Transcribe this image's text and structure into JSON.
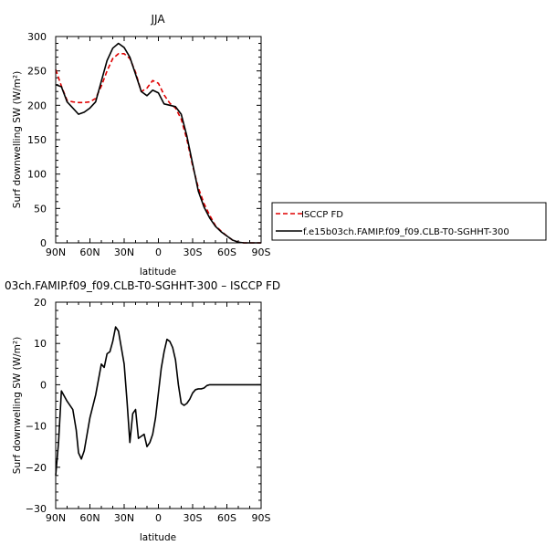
{
  "chart_data": [
    {
      "type": "line",
      "title": "JJA",
      "xlabel": "latitude",
      "ylabel": "Surf downwelling SW (W/m²)",
      "xlim": [
        -90,
        90
      ],
      "ylim": [
        0,
        300
      ],
      "x_tick_values": [
        -90,
        -60,
        -30,
        0,
        30,
        60,
        90
      ],
      "x_tick_labels": [
        "90N",
        "60N",
        "30N",
        "0",
        "30S",
        "60S",
        "90S"
      ],
      "y_tick_values": [
        0,
        50,
        100,
        150,
        200,
        250,
        300
      ],
      "y_tick_labels": [
        "0",
        "50",
        "100",
        "150",
        "200",
        "250",
        "300"
      ],
      "legend_position": "right",
      "series": [
        {
          "name": "ISCCP FD",
          "color": "#e00000",
          "dash": "dashed",
          "x": [
            -90,
            -85,
            -80,
            -75,
            -70,
            -65,
            -60,
            -55,
            -50,
            -45,
            -40,
            -35,
            -30,
            -25,
            -20,
            -15,
            -10,
            -5,
            0,
            5,
            10,
            15,
            20,
            25,
            30,
            35,
            40,
            45,
            50,
            55,
            60,
            65,
            70,
            75,
            80,
            85,
            90
          ],
          "y": [
            252,
            228,
            207,
            205,
            204,
            204,
            205,
            210,
            228,
            250,
            268,
            275,
            275,
            268,
            248,
            220,
            225,
            236,
            232,
            215,
            203,
            196,
            180,
            150,
            112,
            80,
            57,
            40,
            25,
            17,
            10,
            4,
            1,
            0,
            0,
            0,
            0
          ]
        },
        {
          "name": "f.e15b03ch.FAMIP.f09_f09.CLB-T0-SGHHT-300",
          "color": "#000000",
          "dash": "solid",
          "x": [
            -90,
            -85,
            -80,
            -75,
            -70,
            -65,
            -60,
            -55,
            -50,
            -45,
            -40,
            -35,
            -30,
            -25,
            -20,
            -15,
            -10,
            -5,
            0,
            5,
            10,
            15,
            20,
            25,
            30,
            35,
            40,
            45,
            50,
            55,
            60,
            65,
            70,
            75,
            80,
            85,
            90
          ],
          "y": [
            230,
            227,
            205,
            196,
            187,
            190,
            196,
            205,
            235,
            265,
            283,
            290,
            284,
            270,
            245,
            220,
            214,
            222,
            218,
            202,
            200,
            198,
            187,
            155,
            115,
            75,
            52,
            36,
            24,
            16,
            10,
            4,
            1,
            0,
            0,
            0,
            0
          ]
        }
      ]
    },
    {
      "type": "line",
      "title": "03ch.FAMIP.f09_f09.CLB-T0-SGHHT-300 – ISCCP FD",
      "xlabel": "latitude",
      "ylabel": "Surf downwelling SW (W/m²)",
      "xlim": [
        -90,
        90
      ],
      "ylim": [
        -30,
        20
      ],
      "x_tick_values": [
        -90,
        -60,
        -30,
        0,
        30,
        60,
        90
      ],
      "x_tick_labels": [
        "90N",
        "60N",
        "30N",
        "0",
        "30S",
        "60S",
        "90S"
      ],
      "y_tick_values": [
        -30,
        -20,
        -10,
        0,
        10,
        20
      ],
      "y_tick_labels": [
        "−30",
        "−20",
        "−10",
        "0",
        "10",
        "20"
      ],
      "series": [
        {
          "color": "#000000",
          "dash": "solid",
          "x": [
            -90,
            -87.5,
            -85,
            -80,
            -75,
            -72,
            -70,
            -67.5,
            -65,
            -62.5,
            -60,
            -55,
            -50,
            -47.5,
            -45,
            -42.5,
            -40,
            -37.5,
            -35,
            -32.5,
            -30,
            -27.5,
            -25,
            -22.5,
            -20,
            -17.5,
            -15,
            -12.5,
            -10,
            -7.5,
            -5,
            -2.5,
            0,
            2.5,
            5,
            7.5,
            10,
            12.5,
            15,
            17.5,
            20,
            22.5,
            25,
            27.5,
            30,
            32.5,
            35,
            37.5,
            40,
            42.5,
            45,
            47.5,
            50,
            52.5,
            55,
            57.5,
            60,
            62.5,
            65,
            67.5,
            70,
            72.5,
            75,
            80,
            85,
            90
          ],
          "y": [
            -22,
            -14,
            -1.5,
            -4,
            -6,
            -11,
            -16.5,
            -18,
            -16,
            -12,
            -8,
            -2.5,
            5,
            4.2,
            7.5,
            8,
            10.5,
            14,
            13,
            9,
            5,
            -4,
            -14,
            -7,
            -6,
            -13,
            -12.5,
            -12,
            -15,
            -14,
            -12,
            -8,
            -2,
            4,
            8,
            11,
            10.5,
            9,
            6,
            0,
            -4.5,
            -5,
            -4.5,
            -3.5,
            -2,
            -1.2,
            -1,
            -1,
            -0.8,
            -0.2,
            0,
            0,
            0,
            0,
            0,
            0,
            0,
            0,
            0,
            0,
            0,
            0,
            0,
            0,
            0,
            0
          ]
        }
      ]
    }
  ]
}
